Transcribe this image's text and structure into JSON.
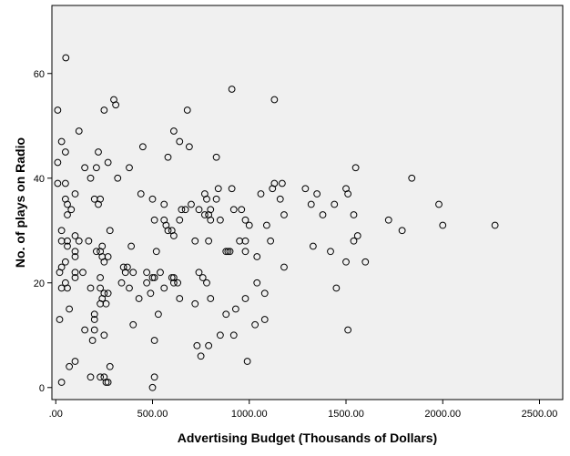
{
  "chart_data": {
    "type": "scatter",
    "title": "",
    "xlabel": "Advertising Budget (Thousands of Dollars)",
    "ylabel": "No. of plays on Radio",
    "xlim": [
      -20,
      2620
    ],
    "ylim": [
      -2.3,
      73
    ],
    "x_ticks": [
      0,
      500,
      1000,
      1500,
      2000,
      2500
    ],
    "x_tick_labels": [
      ".00",
      "500.00",
      "1000.00",
      "1500.00",
      "2000.00",
      "2500.00"
    ],
    "y_ticks": [
      0,
      20,
      40,
      60
    ],
    "y_tick_labels": [
      "0",
      "20",
      "40",
      "60"
    ],
    "grid": false,
    "plot_background": "#f0f0f0",
    "marker_color": "#000000",
    "points": [
      {
        "x": 52,
        "y": 63
      },
      {
        "x": 300,
        "y": 55
      },
      {
        "x": 1130,
        "y": 55
      },
      {
        "x": 910,
        "y": 57
      },
      {
        "x": 10,
        "y": 53
      },
      {
        "x": 250,
        "y": 53
      },
      {
        "x": 680,
        "y": 53
      },
      {
        "x": 310,
        "y": 54
      },
      {
        "x": 120,
        "y": 49
      },
      {
        "x": 610,
        "y": 49
      },
      {
        "x": 30,
        "y": 47
      },
      {
        "x": 640,
        "y": 47
      },
      {
        "x": 450,
        "y": 46
      },
      {
        "x": 690,
        "y": 46
      },
      {
        "x": 50,
        "y": 45
      },
      {
        "x": 220,
        "y": 45
      },
      {
        "x": 580,
        "y": 44
      },
      {
        "x": 830,
        "y": 44
      },
      {
        "x": 10,
        "y": 43
      },
      {
        "x": 270,
        "y": 43
      },
      {
        "x": 150,
        "y": 42
      },
      {
        "x": 210,
        "y": 42
      },
      {
        "x": 380,
        "y": 42
      },
      {
        "x": 1550,
        "y": 42
      },
      {
        "x": 180,
        "y": 40
      },
      {
        "x": 320,
        "y": 40
      },
      {
        "x": 1840,
        "y": 40
      },
      {
        "x": 10,
        "y": 39
      },
      {
        "x": 50,
        "y": 39
      },
      {
        "x": 1130,
        "y": 39
      },
      {
        "x": 1170,
        "y": 39
      },
      {
        "x": 840,
        "y": 38
      },
      {
        "x": 910,
        "y": 38
      },
      {
        "x": 1120,
        "y": 38
      },
      {
        "x": 1290,
        "y": 38
      },
      {
        "x": 1500,
        "y": 38
      },
      {
        "x": 100,
        "y": 37
      },
      {
        "x": 440,
        "y": 37
      },
      {
        "x": 770,
        "y": 37
      },
      {
        "x": 1060,
        "y": 37
      },
      {
        "x": 1350,
        "y": 37
      },
      {
        "x": 1510,
        "y": 37
      },
      {
        "x": 50,
        "y": 36
      },
      {
        "x": 200,
        "y": 36
      },
      {
        "x": 230,
        "y": 36
      },
      {
        "x": 500,
        "y": 36
      },
      {
        "x": 780,
        "y": 36
      },
      {
        "x": 830,
        "y": 36
      },
      {
        "x": 1160,
        "y": 36
      },
      {
        "x": 60,
        "y": 35
      },
      {
        "x": 220,
        "y": 35
      },
      {
        "x": 560,
        "y": 35
      },
      {
        "x": 700,
        "y": 35
      },
      {
        "x": 1320,
        "y": 35
      },
      {
        "x": 1440,
        "y": 35
      },
      {
        "x": 1980,
        "y": 35
      },
      {
        "x": 80,
        "y": 34
      },
      {
        "x": 650,
        "y": 34
      },
      {
        "x": 670,
        "y": 34
      },
      {
        "x": 740,
        "y": 34
      },
      {
        "x": 800,
        "y": 34
      },
      {
        "x": 920,
        "y": 34
      },
      {
        "x": 960,
        "y": 34
      },
      {
        "x": 60,
        "y": 33
      },
      {
        "x": 770,
        "y": 33
      },
      {
        "x": 790,
        "y": 33
      },
      {
        "x": 1180,
        "y": 33
      },
      {
        "x": 1380,
        "y": 33
      },
      {
        "x": 1540,
        "y": 33
      },
      {
        "x": 510,
        "y": 32
      },
      {
        "x": 560,
        "y": 32
      },
      {
        "x": 640,
        "y": 32
      },
      {
        "x": 800,
        "y": 32
      },
      {
        "x": 850,
        "y": 32
      },
      {
        "x": 980,
        "y": 32
      },
      {
        "x": 1720,
        "y": 32
      },
      {
        "x": 570,
        "y": 31
      },
      {
        "x": 1000,
        "y": 31
      },
      {
        "x": 1090,
        "y": 31
      },
      {
        "x": 2000,
        "y": 31
      },
      {
        "x": 2270,
        "y": 31
      },
      {
        "x": 30,
        "y": 30
      },
      {
        "x": 280,
        "y": 30
      },
      {
        "x": 580,
        "y": 30
      },
      {
        "x": 600,
        "y": 30
      },
      {
        "x": 1790,
        "y": 30
      },
      {
        "x": 100,
        "y": 29
      },
      {
        "x": 610,
        "y": 29
      },
      {
        "x": 1560,
        "y": 29
      },
      {
        "x": 30,
        "y": 28
      },
      {
        "x": 60,
        "y": 28
      },
      {
        "x": 120,
        "y": 28
      },
      {
        "x": 170,
        "y": 28
      },
      {
        "x": 720,
        "y": 28
      },
      {
        "x": 790,
        "y": 28
      },
      {
        "x": 950,
        "y": 28
      },
      {
        "x": 980,
        "y": 28
      },
      {
        "x": 1110,
        "y": 28
      },
      {
        "x": 1540,
        "y": 28
      },
      {
        "x": 60,
        "y": 27
      },
      {
        "x": 240,
        "y": 27
      },
      {
        "x": 390,
        "y": 27
      },
      {
        "x": 1330,
        "y": 27
      },
      {
        "x": 100,
        "y": 26
      },
      {
        "x": 210,
        "y": 26
      },
      {
        "x": 230,
        "y": 26
      },
      {
        "x": 520,
        "y": 26
      },
      {
        "x": 880,
        "y": 26
      },
      {
        "x": 890,
        "y": 26
      },
      {
        "x": 900,
        "y": 26
      },
      {
        "x": 980,
        "y": 26
      },
      {
        "x": 1420,
        "y": 26
      },
      {
        "x": 100,
        "y": 25
      },
      {
        "x": 240,
        "y": 25
      },
      {
        "x": 270,
        "y": 25
      },
      {
        "x": 1040,
        "y": 25
      },
      {
        "x": 50,
        "y": 24
      },
      {
        "x": 250,
        "y": 24
      },
      {
        "x": 1500,
        "y": 24
      },
      {
        "x": 1600,
        "y": 24
      },
      {
        "x": 30,
        "y": 23
      },
      {
        "x": 350,
        "y": 23
      },
      {
        "x": 370,
        "y": 23
      },
      {
        "x": 1180,
        "y": 23
      },
      {
        "x": 20,
        "y": 22
      },
      {
        "x": 100,
        "y": 22
      },
      {
        "x": 140,
        "y": 22
      },
      {
        "x": 360,
        "y": 22
      },
      {
        "x": 400,
        "y": 22
      },
      {
        "x": 470,
        "y": 22
      },
      {
        "x": 540,
        "y": 22
      },
      {
        "x": 740,
        "y": 22
      },
      {
        "x": 100,
        "y": 21
      },
      {
        "x": 230,
        "y": 21
      },
      {
        "x": 500,
        "y": 21
      },
      {
        "x": 510,
        "y": 21
      },
      {
        "x": 600,
        "y": 21
      },
      {
        "x": 610,
        "y": 21
      },
      {
        "x": 760,
        "y": 21
      },
      {
        "x": 50,
        "y": 20
      },
      {
        "x": 340,
        "y": 20
      },
      {
        "x": 470,
        "y": 20
      },
      {
        "x": 610,
        "y": 20
      },
      {
        "x": 630,
        "y": 20
      },
      {
        "x": 780,
        "y": 20
      },
      {
        "x": 1040,
        "y": 20
      },
      {
        "x": 30,
        "y": 19
      },
      {
        "x": 60,
        "y": 19
      },
      {
        "x": 180,
        "y": 19
      },
      {
        "x": 230,
        "y": 19
      },
      {
        "x": 380,
        "y": 19
      },
      {
        "x": 560,
        "y": 19
      },
      {
        "x": 1450,
        "y": 19
      },
      {
        "x": 250,
        "y": 18
      },
      {
        "x": 270,
        "y": 18
      },
      {
        "x": 490,
        "y": 18
      },
      {
        "x": 1080,
        "y": 18
      },
      {
        "x": 240,
        "y": 17
      },
      {
        "x": 430,
        "y": 17
      },
      {
        "x": 640,
        "y": 17
      },
      {
        "x": 800,
        "y": 17
      },
      {
        "x": 980,
        "y": 17
      },
      {
        "x": 230,
        "y": 16
      },
      {
        "x": 260,
        "y": 16
      },
      {
        "x": 720,
        "y": 16
      },
      {
        "x": 70,
        "y": 15
      },
      {
        "x": 930,
        "y": 15
      },
      {
        "x": 200,
        "y": 14
      },
      {
        "x": 530,
        "y": 14
      },
      {
        "x": 880,
        "y": 14
      },
      {
        "x": 20,
        "y": 13
      },
      {
        "x": 200,
        "y": 13
      },
      {
        "x": 1080,
        "y": 13
      },
      {
        "x": 400,
        "y": 12
      },
      {
        "x": 1030,
        "y": 12
      },
      {
        "x": 150,
        "y": 11
      },
      {
        "x": 200,
        "y": 11
      },
      {
        "x": 1510,
        "y": 11
      },
      {
        "x": 250,
        "y": 10
      },
      {
        "x": 850,
        "y": 10
      },
      {
        "x": 920,
        "y": 10
      },
      {
        "x": 190,
        "y": 9
      },
      {
        "x": 510,
        "y": 9
      },
      {
        "x": 730,
        "y": 8
      },
      {
        "x": 790,
        "y": 8
      },
      {
        "x": 750,
        "y": 6
      },
      {
        "x": 100,
        "y": 5
      },
      {
        "x": 990,
        "y": 5
      },
      {
        "x": 70,
        "y": 4
      },
      {
        "x": 280,
        "y": 4
      },
      {
        "x": 180,
        "y": 2
      },
      {
        "x": 230,
        "y": 2
      },
      {
        "x": 250,
        "y": 2
      },
      {
        "x": 510,
        "y": 2
      },
      {
        "x": 30,
        "y": 1
      },
      {
        "x": 260,
        "y": 1
      },
      {
        "x": 270,
        "y": 1
      },
      {
        "x": 500,
        "y": 0
      }
    ]
  }
}
